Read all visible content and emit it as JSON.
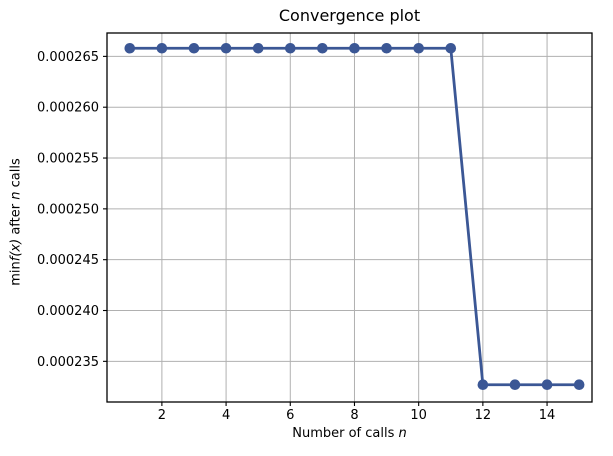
{
  "title": "Convergence plot",
  "labels": {
    "y_min": "min",
    "y_fx": "f(x)",
    "y_after": " after ",
    "y_n": "n",
    "y_calls": " calls",
    "x_prefix": "Number of calls ",
    "x_n": "n"
  },
  "colors": {
    "line": "#3b5795",
    "grid": "#b0b0b0",
    "axis": "#000000",
    "text": "#000000",
    "background": "#ffffff"
  },
  "chart_data": {
    "type": "line",
    "title": "Convergence plot",
    "xlabel": "Number of calls n",
    "ylabel": "min f(x) after n calls",
    "x": [
      1,
      2,
      3,
      4,
      5,
      6,
      7,
      8,
      9,
      10,
      11,
      12,
      13,
      14,
      15
    ],
    "y": [
      0.0002658,
      0.0002658,
      0.0002658,
      0.0002658,
      0.0002658,
      0.0002658,
      0.0002658,
      0.0002658,
      0.0002658,
      0.0002658,
      0.0002658,
      0.0002327,
      0.0002327,
      0.0002327,
      0.0002327
    ],
    "xlim": [
      0.29,
      15.4
    ],
    "ylim": [
      0.000231,
      0.0002673
    ],
    "xticks": [
      2,
      4,
      6,
      8,
      10,
      12,
      14
    ],
    "xtick_labels": [
      "2",
      "4",
      "6",
      "8",
      "10",
      "12",
      "14"
    ],
    "yticks": [
      0.000235,
      0.00024,
      0.000245,
      0.00025,
      0.000255,
      0.00026,
      0.000265
    ],
    "ytick_labels": [
      "0.000235",
      "0.000240",
      "0.000245",
      "0.000250",
      "0.000255",
      "0.000260",
      "0.000265"
    ],
    "grid": true,
    "legend": null,
    "marker": "circle",
    "line_color": "#3b5795",
    "line_width": 2.8,
    "marker_radius": 5.3
  }
}
